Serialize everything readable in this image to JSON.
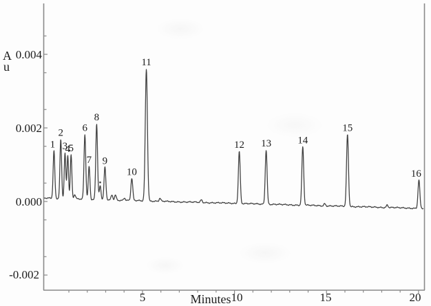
{
  "colors": {
    "background": "#fdfdfd",
    "trace": "#3d3d3d",
    "axis": "#8a8a8a",
    "text": "#1b1b1b"
  },
  "y_axis": {
    "unit_line1": "A",
    "unit_line2": "u",
    "tick_labels": [
      "0.004",
      "0.002",
      "0.000",
      "-0.002"
    ],
    "tick_values": [
      0.004,
      0.002,
      0.0,
      -0.002
    ],
    "minor_tick_values": [
      0.0045,
      0.0035,
      0.0025,
      0.0015,
      0.0005,
      -0.0005,
      -0.0015
    ]
  },
  "x_axis": {
    "title": "Minutes",
    "tick_labels": [
      "5",
      "10",
      "15",
      "20"
    ],
    "tick_values": [
      5,
      10,
      15,
      20
    ],
    "minor_tick_values": [
      1,
      2,
      3,
      4,
      6,
      7,
      8,
      9,
      11,
      12,
      13,
      14,
      16,
      17,
      18,
      19
    ]
  },
  "chart_data": {
    "type": "line",
    "title": "",
    "xlabel": "Minutes",
    "ylabel": "Au",
    "x_range_minutes": [
      -0.35,
      20.35
    ],
    "y_range_au": [
      -0.0024,
      0.0054
    ],
    "grid": "off",
    "baseline_au": {
      "start": 9e-05,
      "end": -0.00019
    },
    "noise_amplitude_au": 2e-05,
    "peaks": [
      {
        "label": "1",
        "rt_min": 0.19,
        "height_au": 0.00129,
        "sigma_min": 0.045,
        "label_dx": -2
      },
      {
        "label": "2",
        "rt_min": 0.56,
        "height_au": 0.00161,
        "sigma_min": 0.045
      },
      {
        "label": "3",
        "rt_min": 0.79,
        "height_au": 0.00125,
        "sigma_min": 0.042
      },
      {
        "label": "4",
        "rt_min": 0.94,
        "height_au": 0.00118,
        "sigma_min": 0.042
      },
      {
        "label": "5",
        "rt_min": 1.12,
        "height_au": 0.0012,
        "sigma_min": 0.042
      },
      {
        "label": "6",
        "rt_min": 1.87,
        "height_au": 0.00176,
        "sigma_min": 0.048
      },
      {
        "label": "7",
        "rt_min": 2.1,
        "height_au": 0.0009,
        "sigma_min": 0.045
      },
      {
        "label": "8",
        "rt_min": 2.51,
        "height_au": 0.00206,
        "sigma_min": 0.048
      },
      {
        "label": "9",
        "rt_min": 2.96,
        "height_au": 0.00088,
        "sigma_min": 0.048
      },
      {
        "label": "10",
        "rt_min": 4.42,
        "height_au": 0.0006,
        "sigma_min": 0.05
      },
      {
        "label": "11",
        "rt_min": 5.21,
        "height_au": 0.00359,
        "sigma_min": 0.058
      },
      {
        "label": "12",
        "rt_min": 10.26,
        "height_au": 0.00142,
        "sigma_min": 0.05
      },
      {
        "label": "13",
        "rt_min": 11.72,
        "height_au": 0.00148,
        "sigma_min": 0.05
      },
      {
        "label": "14",
        "rt_min": 13.71,
        "height_au": 0.00159,
        "sigma_min": 0.05
      },
      {
        "label": "15",
        "rt_min": 16.14,
        "height_au": 0.00196,
        "sigma_min": 0.052
      },
      {
        "label": "16",
        "rt_min": 20.02,
        "height_au": 0.00077,
        "sigma_min": 0.05,
        "label_dx": -4
      }
    ],
    "minor_bumps": [
      {
        "rt_min": 1.32,
        "height_au": 0.00012
      },
      {
        "rt_min": 2.7,
        "height_au": 0.00037
      },
      {
        "rt_min": 3.34,
        "height_au": 0.00013
      },
      {
        "rt_min": 3.53,
        "height_au": 0.00014
      },
      {
        "rt_min": 4.02,
        "height_au": 7e-05
      },
      {
        "rt_min": 5.95,
        "height_au": 8e-05
      },
      {
        "rt_min": 8.2,
        "height_au": 7e-05
      },
      {
        "rt_min": 14.9,
        "height_au": 6e-05
      },
      {
        "rt_min": 18.3,
        "height_au": 7e-05
      }
    ],
    "artifact_dot": {
      "rt_min": 2.7,
      "au": 0.00052
    }
  }
}
